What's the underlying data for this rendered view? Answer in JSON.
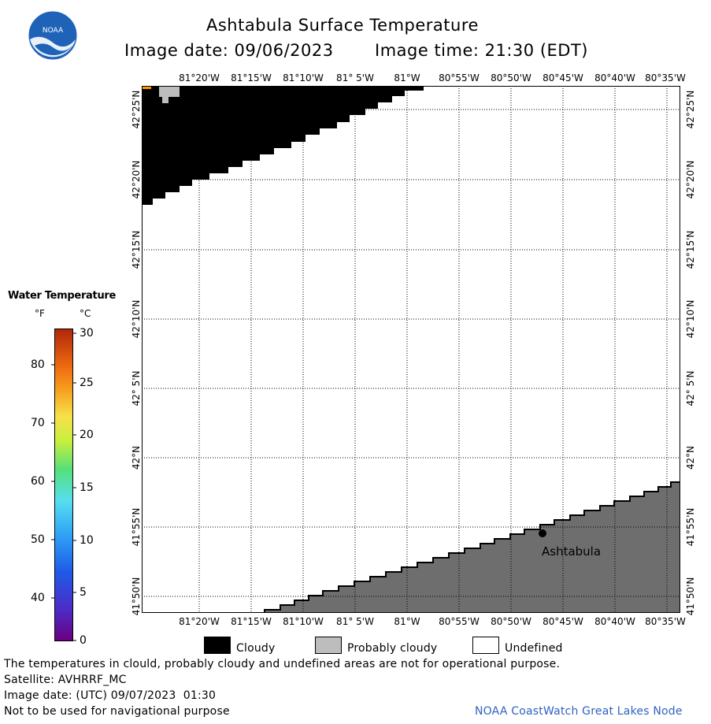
{
  "header": {
    "title": "Ashtabula Surface Temperature",
    "image_date": "Image date: 09/06/2023",
    "image_time": "Image time: 21:30 (EDT)",
    "logo_text": "NOAA"
  },
  "map": {
    "lon_labels": [
      "81°20'W",
      "81°15'W",
      "81°10'W",
      "81° 5'W",
      "81°W",
      "80°55'W",
      "80°50'W",
      "80°45'W",
      "80°40'W",
      "80°35'W"
    ],
    "lat_labels": [
      "42°25'N",
      "42°20'N",
      "42°15'N",
      "42°10'N",
      "42° 5'N",
      "42°N",
      "41°55'N",
      "41°50'N"
    ],
    "city_label": "Ashtabula",
    "colors": {
      "cloudy": "#000000",
      "land": "#6e6e6e",
      "probably_cloudy": "#bdbdbd",
      "undefined": "#ffffff"
    }
  },
  "legend": {
    "title": "Water Temperature",
    "unit_f": "°F",
    "unit_c": "°C",
    "f_ticks": [
      "80",
      "70",
      "60",
      "50",
      "40"
    ],
    "c_ticks": [
      "30",
      "25",
      "20",
      "15",
      "10",
      "5",
      "0"
    ]
  },
  "categories": {
    "cloudy": "Cloudy",
    "probably_cloudy": "Probably cloudy",
    "undefined": "Undefined"
  },
  "footer": {
    "disclaimer": "The temperatures in clould, probably cloudy and undefined areas are not for operational purpose.",
    "satellite": "Satellite: AVHRRF_MC",
    "utc_date": "Image date: (UTC) 09/07/2023  01:30",
    "nav_note": "Not to be used for navigational purpose",
    "credit": "NOAA CoastWatch Great Lakes Node"
  }
}
